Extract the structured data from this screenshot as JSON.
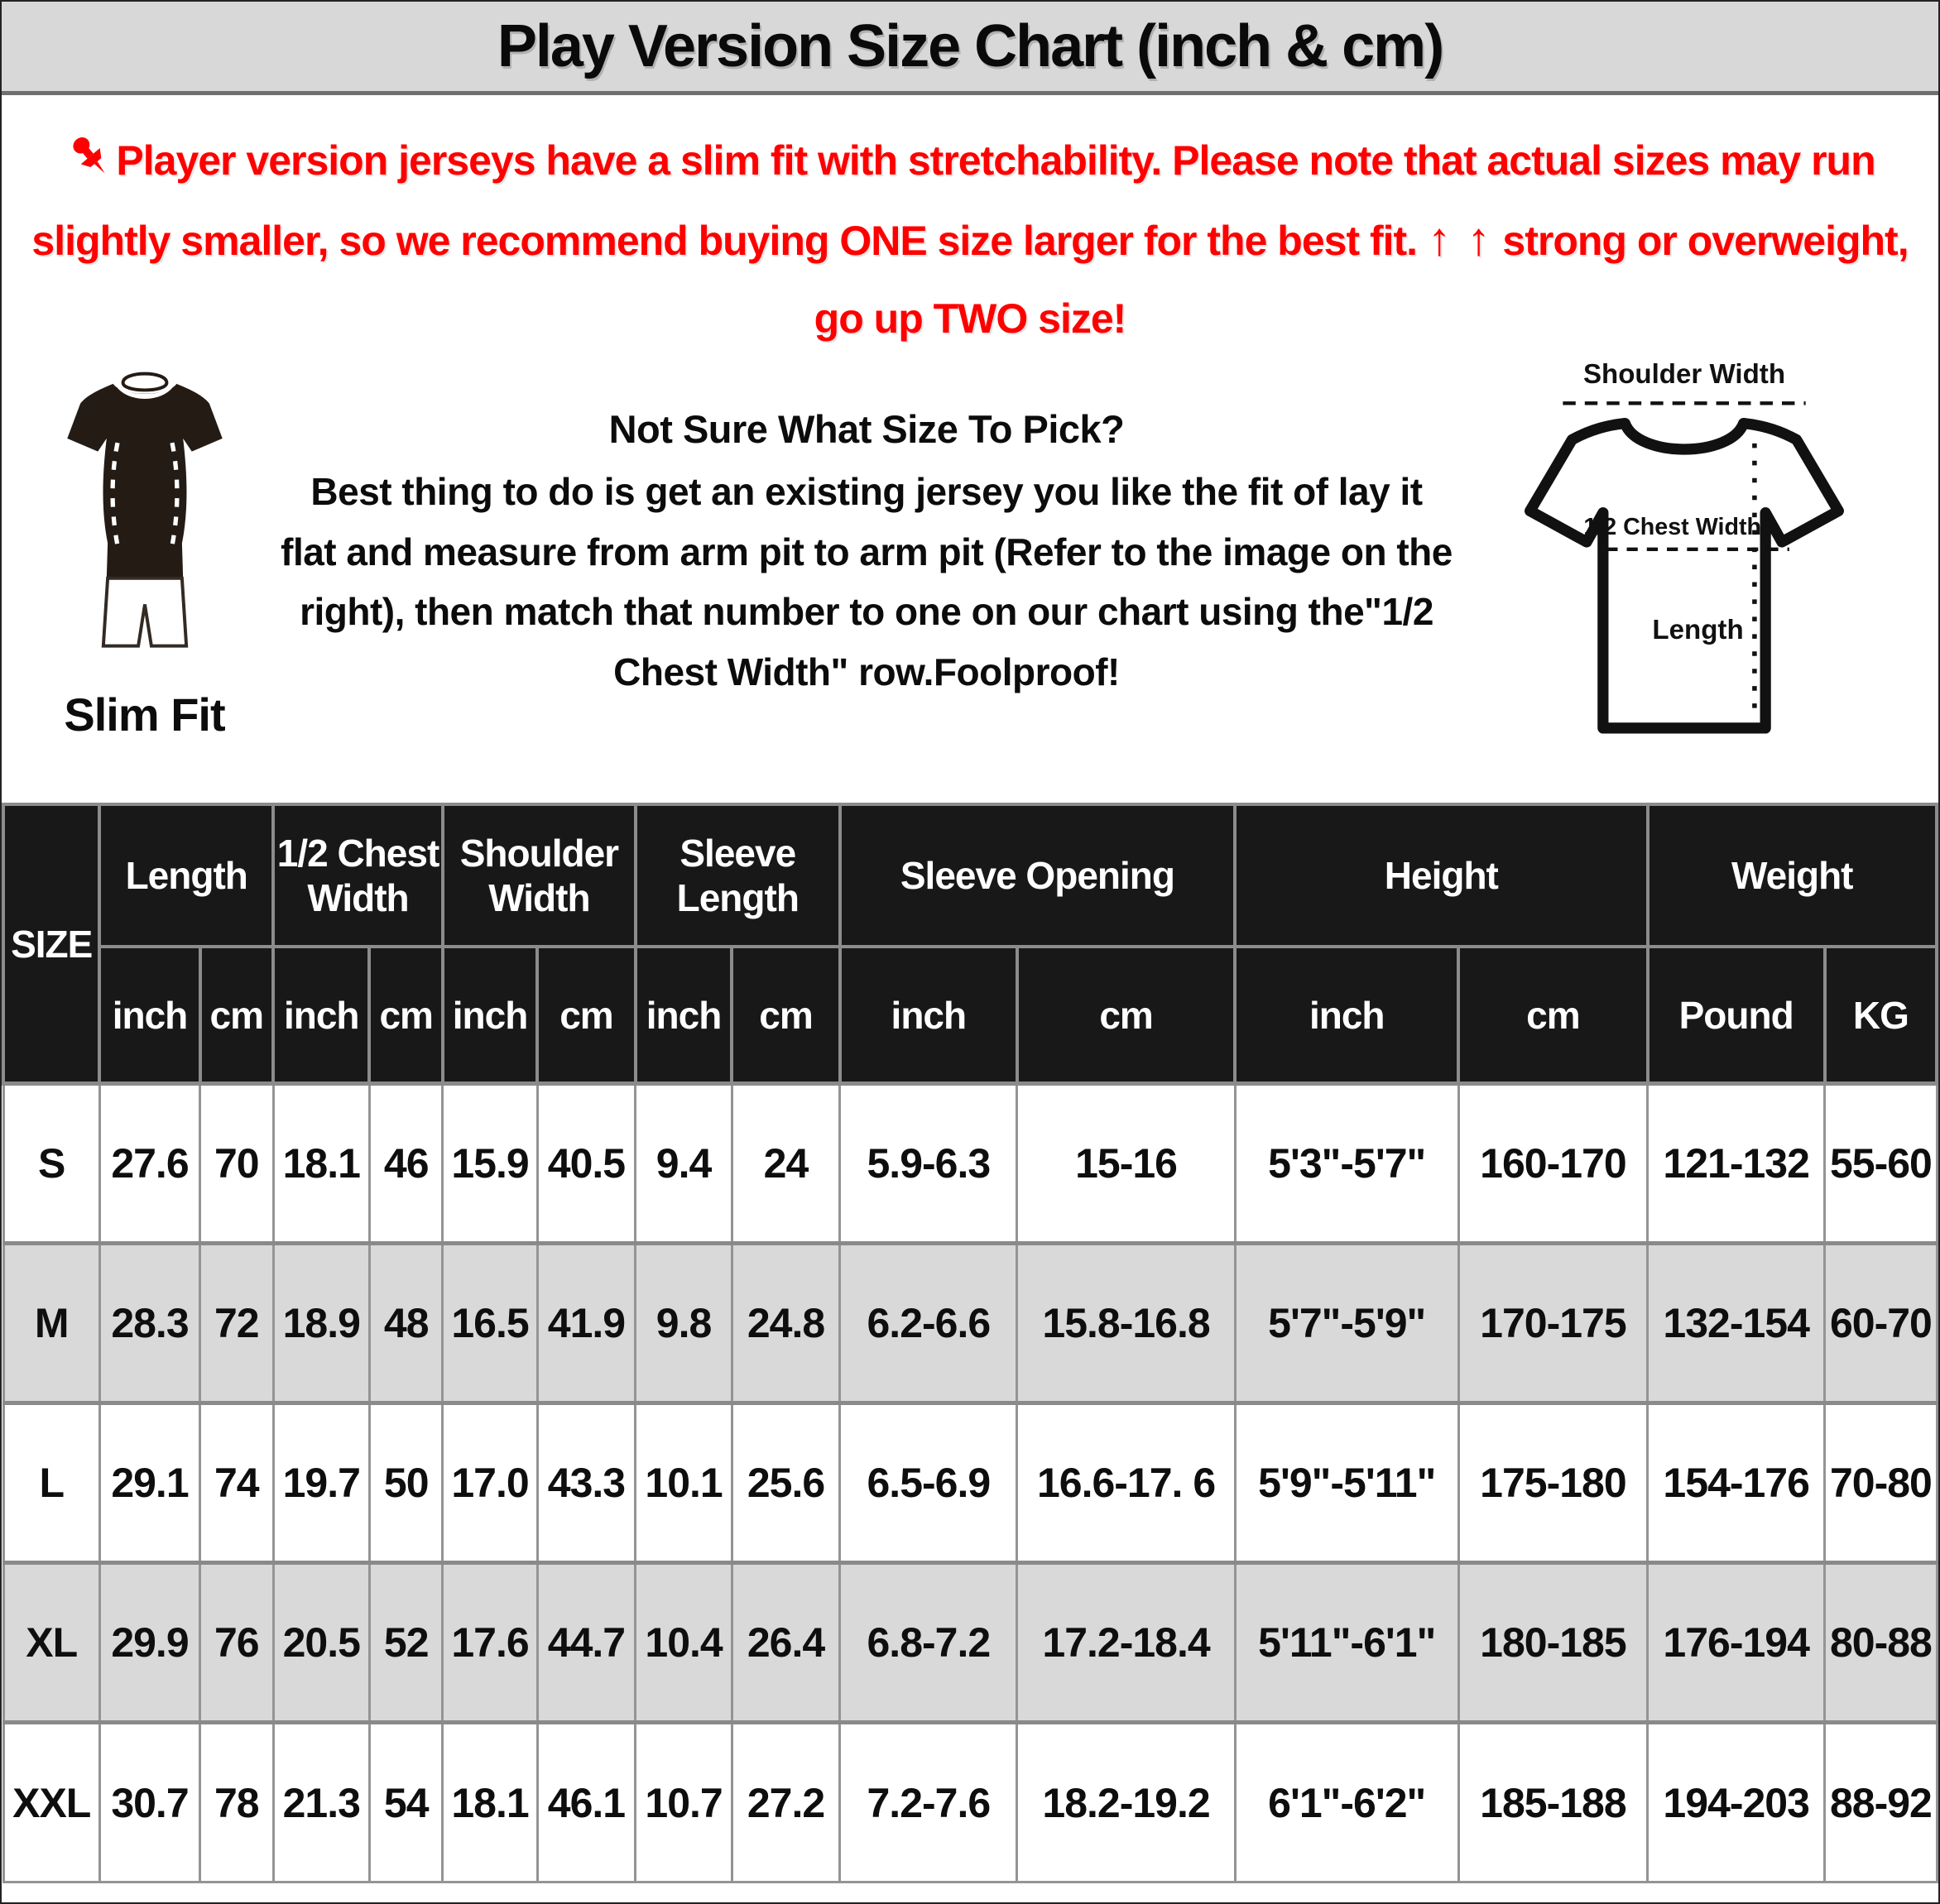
{
  "title": "Play Version Size Chart (inch & cm)",
  "notice": {
    "part1": "Player version jerseys have a slim fit with stretchability. Please note that actual sizes may run slightly smaller, so we recommend buying ONE size larger for the best fit. ",
    "arrows": "↑ ↑",
    "part2": " strong or overweight, go up TWO size!"
  },
  "fit_guide": {
    "icon_label": "Slim Fit",
    "heading": "Not Sure What Size To Pick?",
    "body": "Best thing to do is get an existing jersey you like the fit of lay it flat and measure from arm pit to arm pit (Refer to the image on the right), then match that number to one on our chart using the\"1/2 Chest Width\" row.Foolproof!"
  },
  "diagram": {
    "shoulder_label": "Shoulder Width",
    "chest_label": "1/2 Chest Width",
    "length_label": "Length"
  },
  "table": {
    "size_header": "SIZE",
    "groups": [
      {
        "label": "Length",
        "units": [
          "inch",
          "cm"
        ]
      },
      {
        "label": "1/2 Chest Width",
        "units": [
          "inch",
          "cm"
        ]
      },
      {
        "label": "Shoulder Width",
        "units": [
          "inch",
          "cm"
        ]
      },
      {
        "label": "Sleeve Length",
        "units": [
          "inch",
          "cm"
        ]
      },
      {
        "label": "Sleeve Opening",
        "units": [
          "inch",
          "cm"
        ]
      },
      {
        "label": "Height",
        "units": [
          "inch",
          "cm"
        ]
      },
      {
        "label": "Weight",
        "units": [
          "Pound",
          "KG"
        ]
      }
    ],
    "rows": [
      {
        "size": "S",
        "values": [
          "27.6",
          "70",
          "18.1",
          "46",
          "15.9",
          "40.5",
          "9.4",
          "24",
          "5.9-6.3",
          "15-16",
          "5'3\"-5'7\"",
          "160-170",
          "121-132",
          "55-60"
        ]
      },
      {
        "size": "M",
        "values": [
          "28.3",
          "72",
          "18.9",
          "48",
          "16.5",
          "41.9",
          "9.8",
          "24.8",
          "6.2-6.6",
          "15.8-16.8",
          "5'7\"-5'9\"",
          "170-175",
          "132-154",
          "60-70"
        ]
      },
      {
        "size": "L",
        "values": [
          "29.1",
          "74",
          "19.7",
          "50",
          "17.0",
          "43.3",
          "10.1",
          "25.6",
          "6.5-6.9",
          "16.6-17. 6",
          "5'9\"-5'11\"",
          "175-180",
          "154-176",
          "70-80"
        ]
      },
      {
        "size": "XL",
        "values": [
          "29.9",
          "76",
          "20.5",
          "52",
          "17.6",
          "44.7",
          "10.4",
          "26.4",
          "6.8-7.2",
          "17.2-18.4",
          "5'11\"-6'1\"",
          "180-185",
          "176-194",
          "80-88"
        ]
      },
      {
        "size": "XXL",
        "values": [
          "30.7",
          "78",
          "21.3",
          "54",
          "18.1",
          "46.1",
          "10.7",
          "27.2",
          "7.2-7.6",
          "18.2-19.2",
          "6'1\"-6'2\"",
          "185-188",
          "194-203",
          "88-92"
        ]
      }
    ]
  },
  "colors": {
    "accent_red": "#fe0000",
    "title_band_bg": "#d8d8d8",
    "table_header_bg": "#181818",
    "row_alt_bg": "#d9d9d9",
    "grid_line": "#8c8c8c"
  }
}
